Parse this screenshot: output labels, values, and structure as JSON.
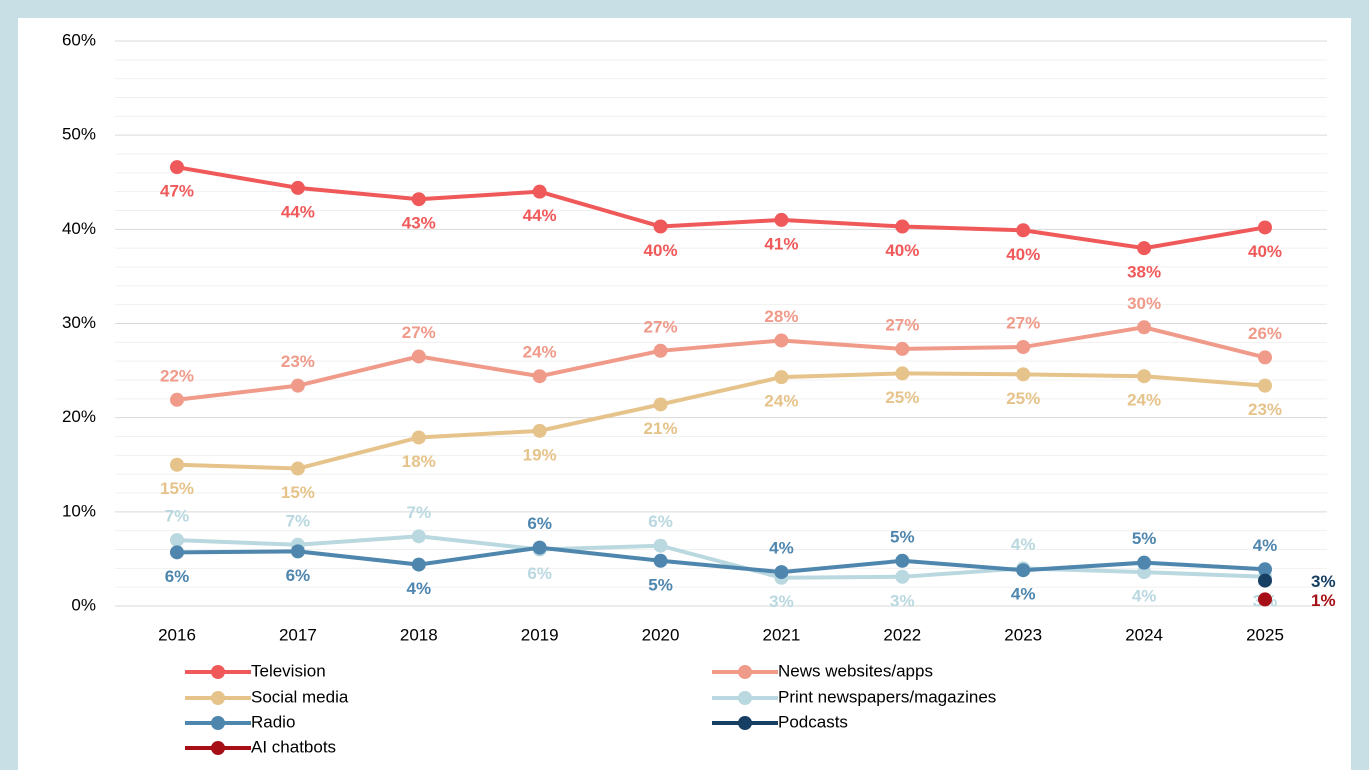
{
  "chart_data": {
    "type": "line",
    "categories": [
      "2016",
      "2017",
      "2018",
      "2019",
      "2020",
      "2021",
      "2022",
      "2023",
      "2024",
      "2025"
    ],
    "ylim": [
      0,
      60
    ],
    "yticks": [
      {
        "value": 0,
        "label": "0%"
      },
      {
        "value": 10,
        "label": "10%"
      },
      {
        "value": 20,
        "label": "20%"
      },
      {
        "value": 30,
        "label": "30%"
      },
      {
        "value": 40,
        "label": "40%"
      },
      {
        "value": 50,
        "label": "50%"
      },
      {
        "value": 60,
        "label": "60%"
      }
    ],
    "minor_yticks": [
      2,
      4,
      6,
      8,
      12,
      14,
      16,
      18,
      22,
      24,
      26,
      28,
      32,
      34,
      36,
      38,
      42,
      44,
      46,
      48,
      52,
      54,
      56,
      58
    ],
    "grid": true,
    "series": [
      {
        "name": "Television",
        "color": "#f0595a",
        "values": [
          46.6,
          44.4,
          43.2,
          44.0,
          40.3,
          41.0,
          40.3,
          39.9,
          38.0,
          40.2
        ],
        "value_labels": [
          "47%",
          "44%",
          "43%",
          "44%",
          "40%",
          "41%",
          "40%",
          "40%",
          "38%",
          "40%"
        ]
      },
      {
        "name": "News websites/apps",
        "color": "#f09a8a",
        "values": [
          21.9,
          23.4,
          26.5,
          24.4,
          27.1,
          28.2,
          27.3,
          27.5,
          29.6,
          26.4
        ],
        "value_labels": [
          "22%",
          "23%",
          "27%",
          "24%",
          "27%",
          "28%",
          "27%",
          "27%",
          "30%",
          "26%"
        ]
      },
      {
        "name": "Social media",
        "color": "#e6c38a",
        "values": [
          15.0,
          14.6,
          17.9,
          18.6,
          21.4,
          24.3,
          24.7,
          24.6,
          24.4,
          23.4
        ],
        "value_labels": [
          "15%",
          "15%",
          "18%",
          "19%",
          "21%",
          "24%",
          "25%",
          "25%",
          "24%",
          "23%"
        ]
      },
      {
        "name": "Print newspapers/magazines",
        "color": "#b9d8df",
        "values": [
          7.0,
          6.5,
          7.4,
          6.0,
          6.4,
          3.0,
          3.1,
          4.0,
          3.6,
          3.1
        ],
        "value_labels": [
          "7%",
          "7%",
          "7%",
          "6%",
          "6%",
          "3%",
          "3%",
          "4%",
          "4%",
          "3%"
        ]
      },
      {
        "name": "Radio",
        "color": "#4e86ae",
        "values": [
          5.7,
          5.8,
          4.4,
          6.2,
          4.8,
          3.6,
          4.8,
          3.8,
          4.6,
          3.9
        ],
        "value_labels": [
          "6%",
          "6%",
          "4%",
          "6%",
          "5%",
          "4%",
          "5%",
          "4%",
          "5%",
          "4%"
        ]
      },
      {
        "name": "Podcasts",
        "color": "#173f63",
        "values": [
          null,
          null,
          null,
          null,
          null,
          null,
          null,
          null,
          null,
          2.7
        ],
        "value_labels": [
          null,
          null,
          null,
          null,
          null,
          null,
          null,
          null,
          null,
          "3%"
        ]
      },
      {
        "name": "AI chatbots",
        "color": "#a50f15",
        "values": [
          null,
          null,
          null,
          null,
          null,
          null,
          null,
          null,
          null,
          0.7
        ],
        "value_labels": [
          null,
          null,
          null,
          null,
          null,
          null,
          null,
          null,
          null,
          "1%"
        ]
      }
    ]
  }
}
